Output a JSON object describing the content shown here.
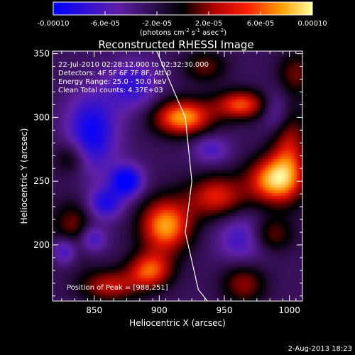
{
  "chart_data": {
    "type": "heatmap",
    "title": "Reconstructed RHESSI Image",
    "xlabel": "Heliocentric X (arcsec)",
    "ylabel": "Heliocentric Y (arcsec)",
    "xlim": [
      818,
      1010
    ],
    "ylim": [
      156,
      352
    ],
    "x_ticks": [
      850,
      900,
      950,
      1000
    ],
    "y_ticks": [
      200,
      250,
      300,
      350
    ],
    "colorbar": {
      "ticks": [
        "-0.00010",
        "-6.0e-05",
        "-2.0e-05",
        "2.0e-05",
        "6.0e-05",
        "0.00010"
      ],
      "tick_values": [
        -0.0001,
        -6e-05,
        -2e-05,
        2e-05,
        6e-05,
        0.0001
      ],
      "range": [
        -0.0001,
        0.0001
      ],
      "unit_label": "(photons cm",
      "unit_sup1": "-2",
      "unit_mid": " s",
      "unit_sup2": "-1",
      "unit_mid2": " asec",
      "unit_sup3": "-2",
      "unit_end": ")"
    },
    "annotations": [
      "22-Jul-2010 02:28:12.000 to 02:32:30.000",
      "Detectors: 4F 5F 6F 7F 8F, Att 0",
      "Energy Range: 25.0 - 50.0 keV",
      "Clean    Total counts: 4.37E+03"
    ],
    "peak_label": "Position of Peak = [988,251]",
    "peak": [
      988,
      251
    ],
    "limb_curve": [
      [
        898,
        352
      ],
      [
        920,
        300
      ],
      [
        925,
        250
      ],
      [
        920,
        210
      ],
      [
        930,
        165
      ],
      [
        937,
        156
      ]
    ],
    "sources": [
      {
        "x": 918,
        "y": 300,
        "amp": 0.0001,
        "sx": 16,
        "sy": 10
      },
      {
        "x": 963,
        "y": 310,
        "amp": 8e-05,
        "sx": 14,
        "sy": 8
      },
      {
        "x": 988,
        "y": 251,
        "amp": 0.0001,
        "sx": 14,
        "sy": 13
      },
      {
        "x": 944,
        "y": 238,
        "amp": 7e-05,
        "sx": 16,
        "sy": 12
      },
      {
        "x": 905,
        "y": 215,
        "amp": 0.0001,
        "sx": 14,
        "sy": 15
      },
      {
        "x": 893,
        "y": 180,
        "amp": 8e-05,
        "sx": 12,
        "sy": 10
      },
      {
        "x": 862,
        "y": 168,
        "amp": 6e-05,
        "sx": 16,
        "sy": 9
      },
      {
        "x": 1000,
        "y": 275,
        "amp": 6e-05,
        "sx": 10,
        "sy": 24
      },
      {
        "x": 935,
        "y": 340,
        "amp": 4e-05,
        "sx": 12,
        "sy": 9
      },
      {
        "x": 835,
        "y": 212,
        "amp": 5e-05,
        "sx": 12,
        "sy": 16
      },
      {
        "x": 832,
        "y": 268,
        "amp": 4e-05,
        "sx": 9,
        "sy": 10
      },
      {
        "x": 965,
        "y": 170,
        "amp": 5e-05,
        "sx": 12,
        "sy": 12
      },
      {
        "x": 985,
        "y": 208,
        "amp": 5e-05,
        "sx": 12,
        "sy": 10
      },
      {
        "x": 1005,
        "y": 335,
        "amp": 4e-05,
        "sx": 10,
        "sy": 12
      },
      {
        "x": 875,
        "y": 250,
        "amp": -8e-05,
        "sx": 9,
        "sy": 9
      },
      {
        "x": 848,
        "y": 288,
        "amp": -7e-05,
        "sx": 14,
        "sy": 22
      },
      {
        "x": 858,
        "y": 232,
        "amp": -6e-05,
        "sx": 10,
        "sy": 9
      },
      {
        "x": 828,
        "y": 196,
        "amp": -6e-05,
        "sx": 7,
        "sy": 8
      },
      {
        "x": 848,
        "y": 205,
        "amp": -6e-05,
        "sx": 8,
        "sy": 8
      },
      {
        "x": 880,
        "y": 325,
        "amp": -5e-05,
        "sx": 14,
        "sy": 14
      },
      {
        "x": 965,
        "y": 205,
        "amp": -5e-05,
        "sx": 14,
        "sy": 14
      },
      {
        "x": 990,
        "y": 305,
        "amp": -4e-05,
        "sx": 8,
        "sy": 12
      },
      {
        "x": 940,
        "y": 275,
        "amp": -4e-05,
        "sx": 10,
        "sy": 8
      }
    ]
  },
  "footer_date": "2-Aug-2013 18:23"
}
